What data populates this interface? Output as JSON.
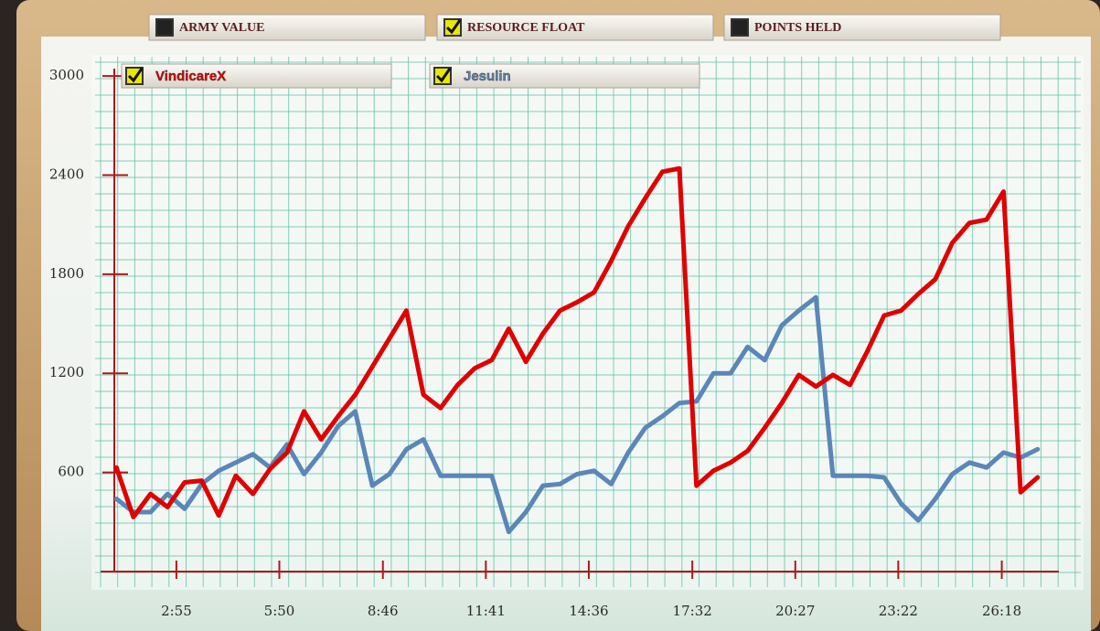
{
  "tabs": [
    {
      "label": "ARMY VALUE",
      "checked": false
    },
    {
      "label": "RESOURCE FLOAT",
      "checked": true
    },
    {
      "label": "POINTS HELD",
      "checked": false
    }
  ],
  "chart_data": {
    "type": "line",
    "x": [
      73,
      102,
      131,
      160,
      189,
      218,
      247,
      276,
      305,
      334,
      363,
      392,
      421,
      450,
      479,
      508,
      537,
      566,
      595,
      624,
      653,
      682,
      711,
      740,
      769,
      798,
      827,
      856,
      885,
      914,
      943,
      972,
      1001,
      1030,
      1059,
      1088,
      1117,
      1146,
      1175,
      1204,
      1233,
      1262,
      1291,
      1320,
      1349,
      1378,
      1407,
      1436,
      1465,
      1494,
      1523,
      1552,
      1581,
      1610,
      1639
    ],
    "series": [
      {
        "name": "VindicareX",
        "color": "#e00000",
        "checked": true,
        "values": [
          630,
          330,
          470,
          390,
          540,
          550,
          340,
          580,
          470,
          620,
          720,
          970,
          800,
          940,
          1070,
          1240,
          1410,
          1580,
          1070,
          990,
          1130,
          1230,
          1280,
          1470,
          1270,
          1440,
          1580,
          1630,
          1690,
          1880,
          2090,
          2260,
          2420,
          2440,
          520,
          610,
          660,
          730,
          870,
          1020,
          1190,
          1120,
          1190,
          1130,
          1330,
          1550,
          1580,
          1680,
          1770,
          1990,
          2110,
          2130,
          2300,
          480,
          570
        ]
      },
      {
        "name": "Jesulin",
        "color": "#5b86b8",
        "checked": true,
        "values": [
          440,
          360,
          360,
          470,
          380,
          530,
          610,
          660,
          710,
          630,
          770,
          590,
          720,
          880,
          970,
          520,
          590,
          740,
          800,
          580,
          580,
          580,
          580,
          240,
          360,
          520,
          530,
          590,
          610,
          530,
          720,
          870,
          940,
          1020,
          1030,
          1200,
          1200,
          1360,
          1280,
          1490,
          1580,
          1660,
          580,
          580,
          580,
          570,
          410,
          310,
          440,
          590,
          660,
          630,
          720,
          690,
          740
        ]
      }
    ],
    "xlim": [
      71,
      1675
    ],
    "xticks": [
      {
        "value": 175,
        "label": "2:55"
      },
      {
        "value": 350,
        "label": "5:50"
      },
      {
        "value": 526,
        "label": "8:46"
      },
      {
        "value": 701,
        "label": "11:41"
      },
      {
        "value": 876,
        "label": "14:36"
      },
      {
        "value": 1052,
        "label": "17:32"
      },
      {
        "value": 1227,
        "label": "20:27"
      },
      {
        "value": 1402,
        "label": "23:22"
      },
      {
        "value": 1578,
        "label": "26:18"
      }
    ],
    "ylim": [
      0,
      3100
    ],
    "yticks": [
      600,
      1200,
      1800,
      2400,
      3000
    ],
    "grid": true
  }
}
